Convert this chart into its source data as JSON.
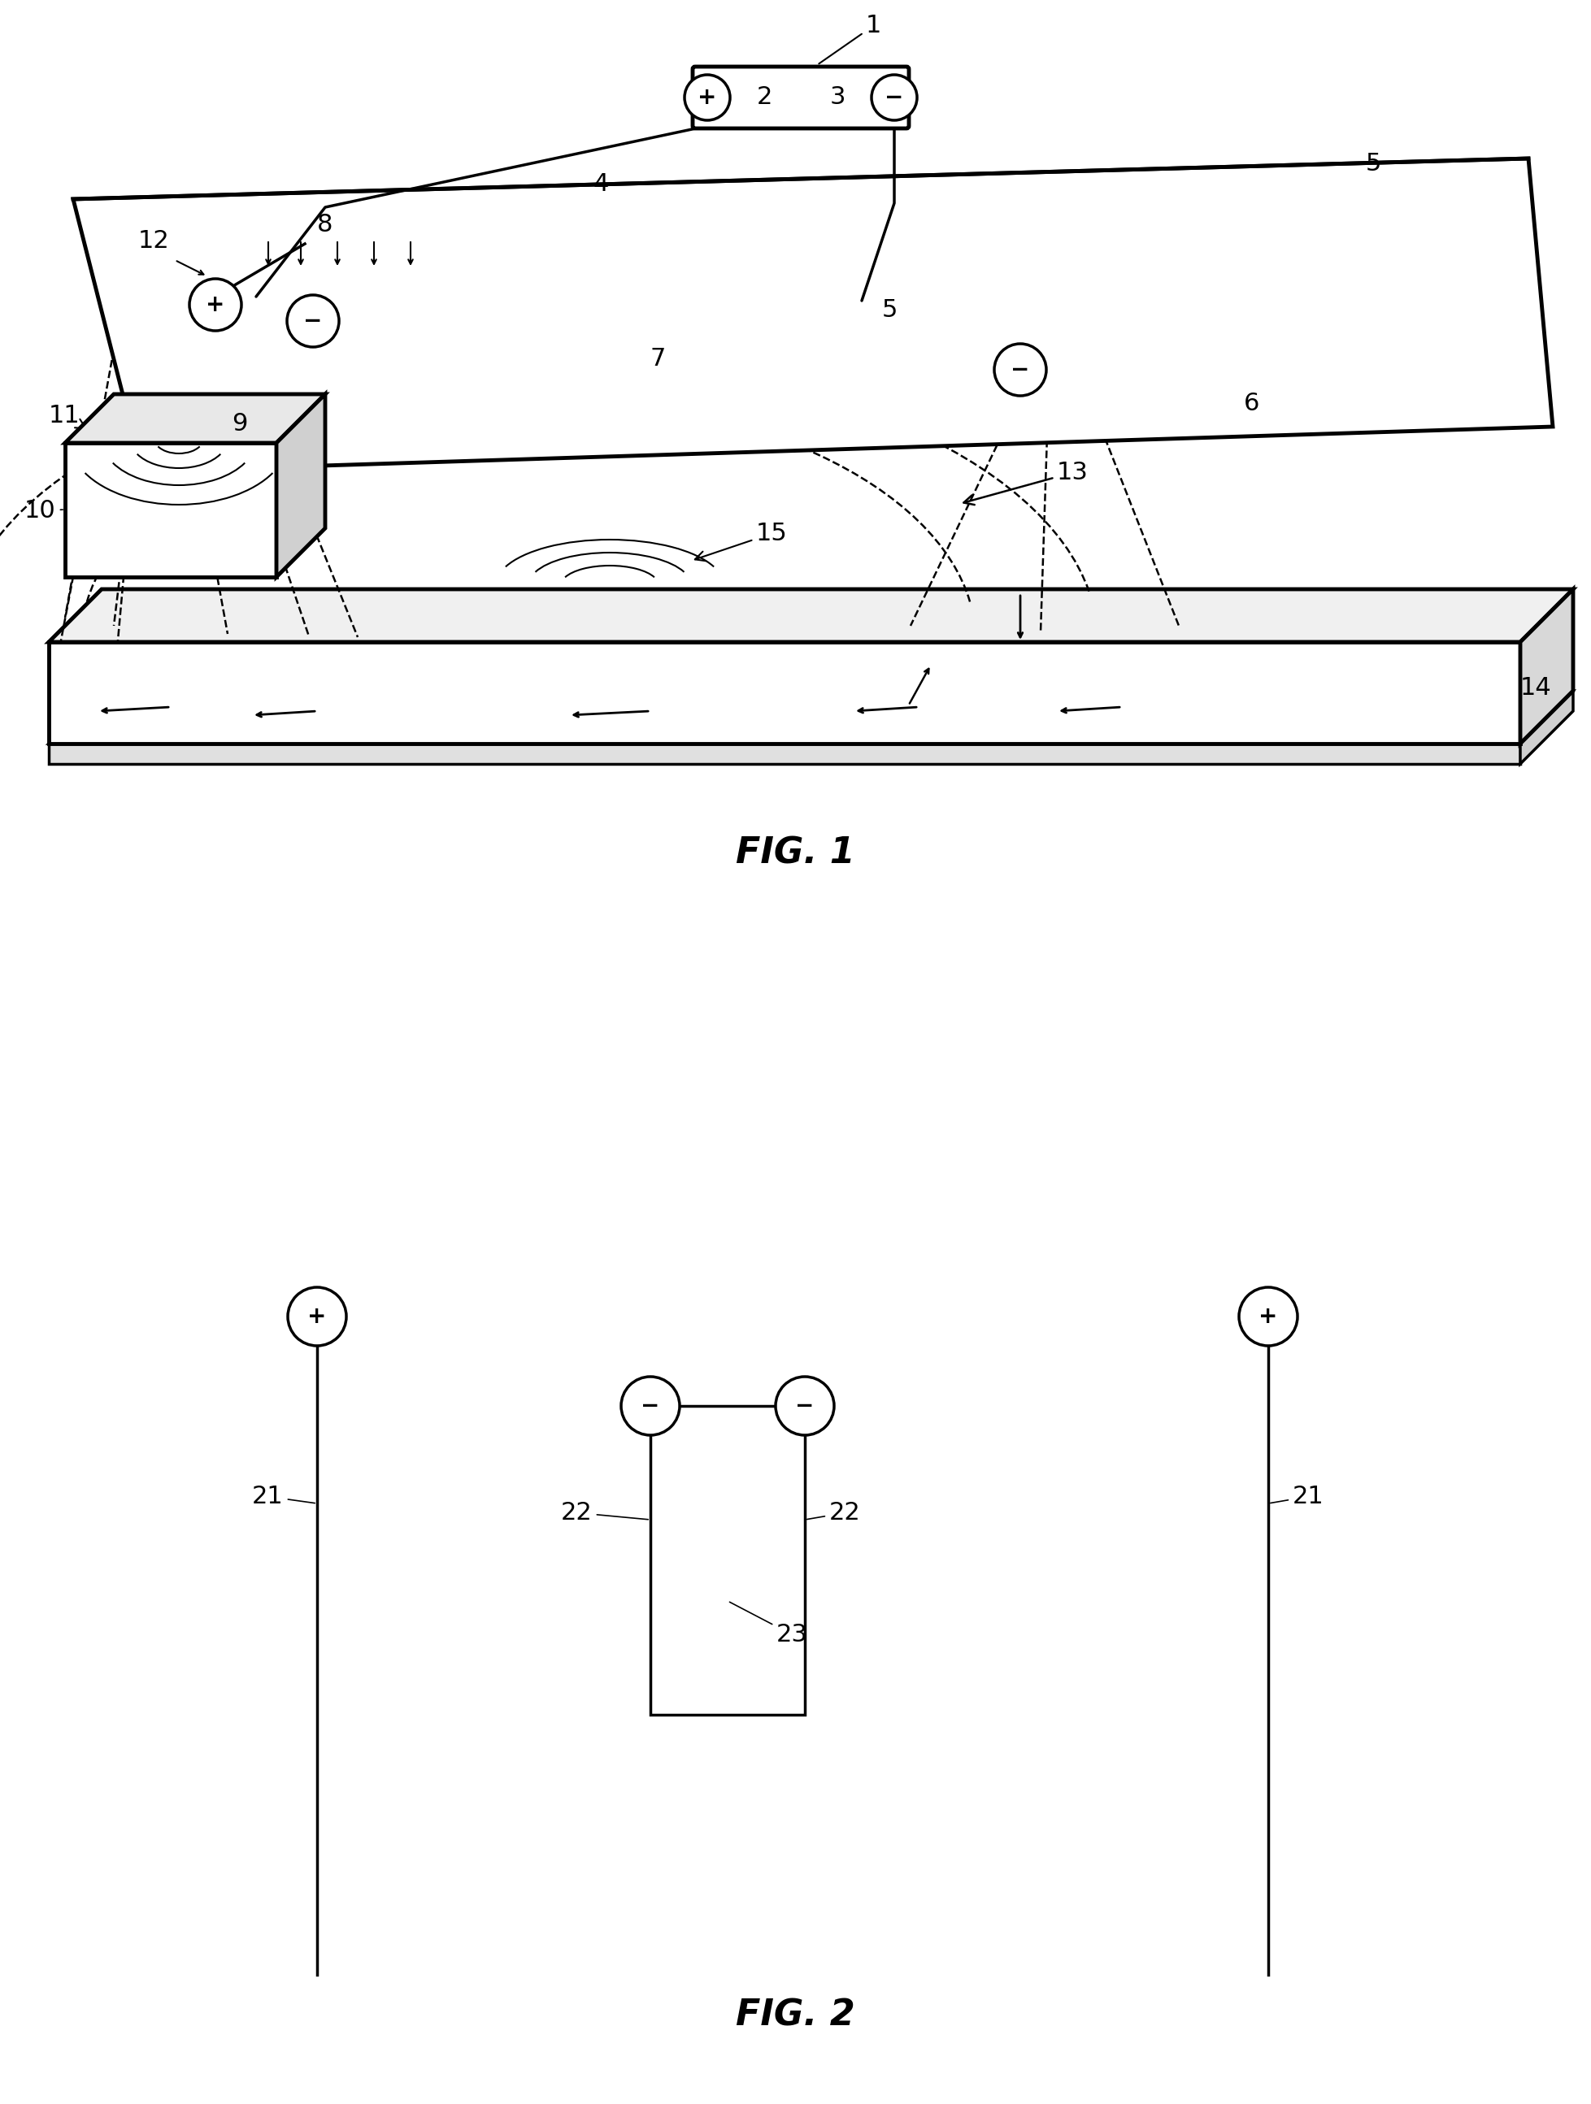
{
  "fig_width": 19.57,
  "fig_height": 25.89,
  "bg_color": "#ffffff",
  "fig1_title": "FIG. 1",
  "fig2_title": "FIG. 2"
}
